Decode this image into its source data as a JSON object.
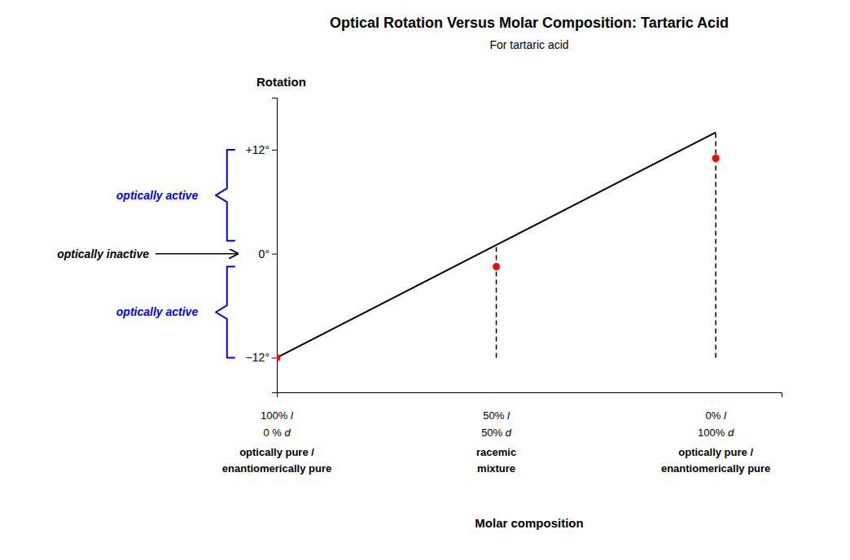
{
  "chart_data": {
    "type": "line",
    "title": "Optical Rotation Versus Molar Composition: Tartaric Acid",
    "subtitle": "For tartaric acid",
    "ylabel": "Rotation",
    "xlabel": "Molar composition",
    "xlim": [
      0,
      1.15
    ],
    "ylim": [
      -16,
      18
    ],
    "yticks": [
      {
        "value": -12,
        "label": "−12°"
      },
      {
        "value": 0,
        "label": "0°"
      },
      {
        "value": 12,
        "label": "+12°"
      }
    ],
    "tick_labels": "y",
    "series": [
      {
        "type": "line",
        "color": "#000000",
        "x": [
          0,
          1
        ],
        "values": [
          -12,
          14
        ]
      },
      {
        "type": "line",
        "line_style": "dashed",
        "color": "#000000",
        "x": [
          0.5,
          0.5
        ],
        "values": [
          -12,
          1
        ]
      },
      {
        "type": "line",
        "line_style": "dashed",
        "color": "#000000",
        "x": [
          1.0,
          1.0
        ],
        "values": [
          -12,
          14
        ]
      },
      {
        "type": "scatter",
        "marker": "circle",
        "color": "red",
        "x": [
          0.0,
          0.5,
          1.0
        ],
        "values": [
          -12,
          -1.5,
          11
        ]
      }
    ],
    "annotations": [
      {
        "text": "optically active",
        "color": "#0000FF",
        "y_range": [
          1.5,
          12
        ]
      },
      {
        "text": "optically active",
        "color": "#0000FF",
        "y_range": [
          -12,
          -1.5
        ]
      },
      {
        "text": "optically inactive",
        "y": 0
      },
      {
        "x": 0.0,
        "text": [
          "100% l",
          "0 % d",
          "optically pure /",
          "enantiomerically pure"
        ]
      },
      {
        "x": 0.5,
        "text": [
          "50% l",
          "50% d",
          "racemic",
          "mixture"
        ]
      },
      {
        "x": 1.0,
        "text": [
          "0% l",
          "100% d",
          "optically pure /",
          "enantiomerically pure"
        ]
      }
    ]
  }
}
